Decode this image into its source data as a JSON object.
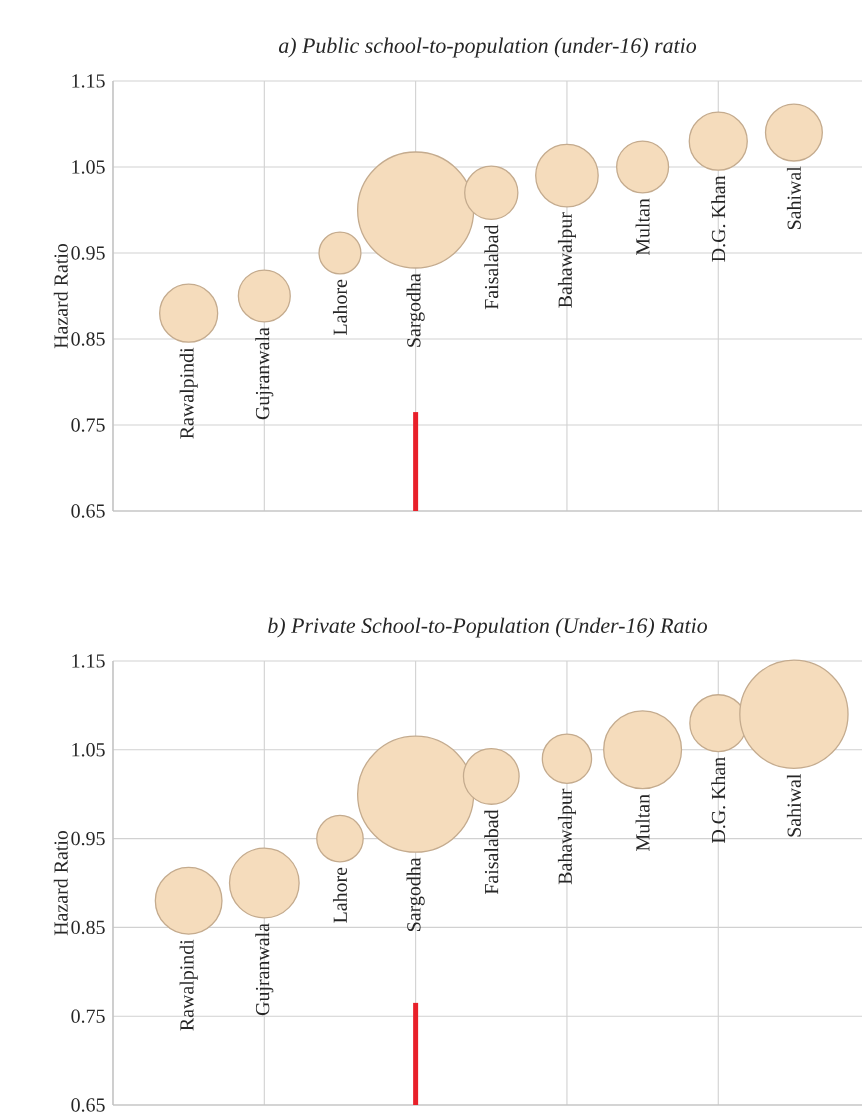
{
  "chart_data": [
    {
      "type": "bubble",
      "title": "a) Public school-to-population (under-16) ratio",
      "ylabel": "Hazard Ratio",
      "categories": [
        "Rawalpindi",
        "Gujranwala",
        "Lahore",
        "Sargodha",
        "Faisalabad",
        "Bahawalpur",
        "Multan",
        "D.G. Khan",
        "Sahiwal"
      ],
      "series": [
        {
          "color": "#f5dcbc",
          "values": [
            0.88,
            0.9,
            0.95,
            1.0,
            1.02,
            1.04,
            1.05,
            1.08,
            1.09
          ],
          "sizes": [
            0.25,
            0.2,
            0.13,
            1,
            0.21,
            0.29,
            0.2,
            0.25,
            0.24
          ]
        },
        {
          "type": "bar",
          "color": "#e8202a",
          "values": [
            null,
            null,
            null,
            0.765,
            null,
            null,
            null,
            null,
            null
          ]
        }
      ],
      "ylim": [
        0.65,
        1.15
      ],
      "yticks": [
        0.65,
        0.75,
        0.85,
        0.95,
        1.05,
        1.15
      ],
      "grid": true
    },
    {
      "type": "bubble",
      "title": "b) Private School-to-Population (Under-16) Ratio",
      "ylabel": "Hazard Ratio",
      "categories": [
        "Rawalpindi",
        "Gujranwala",
        "Lahore",
        "Sargodha",
        "Faisalabad",
        "Bahawalpur",
        "Multan",
        "D.G. Khan",
        "Sahiwal"
      ],
      "series": [
        {
          "color": "#f5dcbc",
          "values": [
            0.88,
            0.9,
            0.95,
            1.0,
            1.02,
            1.04,
            1.05,
            1.08,
            1.09
          ],
          "sizes": [
            0.33,
            0.36,
            0.16,
            1,
            0.23,
            0.18,
            0.45,
            0.24,
            0.87
          ]
        },
        {
          "type": "bar",
          "color": "#e8202a",
          "values": [
            null,
            null,
            null,
            0.765,
            null,
            null,
            null,
            null,
            null
          ]
        }
      ],
      "ylim": [
        0.65,
        1.15
      ],
      "yticks": [
        0.65,
        0.75,
        0.85,
        0.95,
        1.05,
        1.15
      ],
      "grid": true
    }
  ]
}
